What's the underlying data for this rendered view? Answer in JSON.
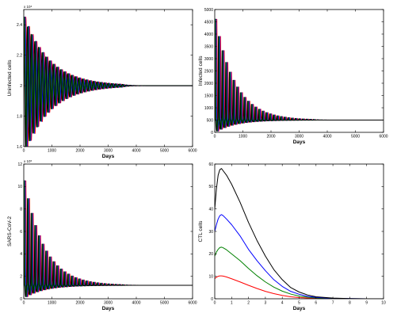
{
  "figure": {
    "background": "#ffffff"
  },
  "chart_data": [
    {
      "type": "line",
      "title": "",
      "xlabel": "Days",
      "ylabel": "Uninfected cells",
      "xlim": [
        0,
        6000
      ],
      "ylim": [
        1.6,
        2.5
      ],
      "y_exponent": "x 10⁴",
      "x_ticks": [
        0,
        1000,
        2000,
        3000,
        4000,
        5000,
        6000
      ],
      "x_tick_labels": [
        "0",
        "1000",
        "2000",
        "3000",
        "4000",
        "5000",
        "6000"
      ],
      "y_ticks": [
        1.6,
        1.8,
        2,
        2.2,
        2.4
      ],
      "y_tick_labels": [
        "1.6",
        "1.8",
        "2",
        "2.2",
        "2.4"
      ],
      "equilibrium": 2.0,
      "oscillation_amplitude": 0.45,
      "oscillation_period_days": 130,
      "oscillation_decay_days": 900,
      "oscillation_fade_days": 3500,
      "series": [
        {
          "color": "#000000",
          "phase_shift_days": 0
        },
        {
          "color": "#008000",
          "phase_shift_days": 25
        },
        {
          "color": "#0000ff",
          "phase_shift_days": 50
        },
        {
          "color": "#ff0000",
          "phase_shift_days": 75
        }
      ]
    },
    {
      "type": "line",
      "title": "",
      "xlabel": "Days",
      "ylabel": "Infected cells",
      "xlim": [
        0,
        6000
      ],
      "ylim": [
        0,
        5000
      ],
      "y_exponent": "",
      "x_ticks": [
        0,
        1000,
        2000,
        3000,
        4000,
        5000,
        6000
      ],
      "x_tick_labels": [
        "0",
        "1000",
        "2000",
        "3000",
        "4000",
        "5000",
        "6000"
      ],
      "y_ticks": [
        0,
        500,
        1000,
        1500,
        2000,
        2500,
        3000,
        3500,
        4000,
        4500,
        5000
      ],
      "y_tick_labels": [
        "0",
        "500",
        "1000",
        "1500",
        "2000",
        "2500",
        "3000",
        "3500",
        "4000",
        "4500",
        "5000"
      ],
      "equilibrium": 500,
      "spike_peak": 4600,
      "spike_decay_days": 700,
      "oscillation_period_days": 130,
      "oscillation_fade_days": 3500,
      "series": [
        {
          "color": "#000000",
          "phase_shift_days": 0
        },
        {
          "color": "#008000",
          "phase_shift_days": 25
        },
        {
          "color": "#0000ff",
          "phase_shift_days": 50
        },
        {
          "color": "#ff0000",
          "phase_shift_days": 75
        }
      ]
    },
    {
      "type": "line",
      "title": "",
      "xlabel": "Days",
      "ylabel": "SARS-CoV-2",
      "xlim": [
        0,
        6000
      ],
      "ylim": [
        0,
        12
      ],
      "y_exponent": "x 10⁵",
      "x_ticks": [
        0,
        1000,
        2000,
        3000,
        4000,
        5000,
        6000
      ],
      "x_tick_labels": [
        "0",
        "1000",
        "2000",
        "3000",
        "4000",
        "5000",
        "6000"
      ],
      "y_ticks": [
        0,
        2,
        4,
        6,
        8,
        10,
        12
      ],
      "y_tick_labels": [
        "0",
        "2",
        "4",
        "6",
        "8",
        "10",
        "12"
      ],
      "equilibrium": 1.2,
      "spike_peak": 10.5,
      "spike_decay_days": 700,
      "oscillation_period_days": 130,
      "oscillation_fade_days": 3500,
      "series": [
        {
          "color": "#000000",
          "phase_shift_days": 0
        },
        {
          "color": "#008000",
          "phase_shift_days": 25
        },
        {
          "color": "#0000ff",
          "phase_shift_days": 50
        },
        {
          "color": "#ff0000",
          "phase_shift_days": 75
        }
      ]
    },
    {
      "type": "line",
      "title": "",
      "xlabel": "Days",
      "ylabel": "CTL cells",
      "xlim": [
        0,
        10
      ],
      "ylim": [
        0,
        60
      ],
      "y_exponent": "",
      "x_ticks": [
        0,
        1,
        2,
        3,
        4,
        5,
        6,
        7,
        8,
        9,
        10
      ],
      "x_tick_labels": [
        "0",
        "1",
        "2",
        "3",
        "4",
        "5",
        "6",
        "7",
        "8",
        "9",
        "10"
      ],
      "y_ticks": [
        0,
        10,
        20,
        30,
        40,
        50,
        60
      ],
      "y_tick_labels": [
        "0",
        "10",
        "20",
        "30",
        "40",
        "50",
        "60"
      ],
      "series": [
        {
          "color": "#000000",
          "x": [
            0,
            0.1,
            0.2,
            0.3,
            0.4,
            0.5,
            0.7,
            1,
            1.5,
            2,
            2.5,
            3,
            3.5,
            4,
            4.5,
            5,
            5.5,
            6,
            7,
            8,
            9,
            10
          ],
          "y": [
            40,
            49,
            55,
            57.5,
            58,
            57,
            55,
            51,
            43,
            34,
            26,
            19,
            13,
            8.5,
            5,
            3,
            1.7,
            0.9,
            0.3,
            0.1,
            0,
            0
          ]
        },
        {
          "color": "#0000ff",
          "x": [
            0,
            0.1,
            0.2,
            0.3,
            0.4,
            0.5,
            0.7,
            1,
            1.5,
            2,
            2.5,
            3,
            3.5,
            4,
            4.5,
            5,
            5.5,
            6,
            7,
            8,
            9,
            10
          ],
          "y": [
            30,
            33,
            35.5,
            37,
            37.5,
            37,
            35.5,
            33,
            28,
            22,
            17,
            12.5,
            8.5,
            5.5,
            3.3,
            2,
            1.1,
            0.6,
            0.2,
            0.1,
            0,
            0
          ]
        },
        {
          "color": "#008000",
          "x": [
            0,
            0.1,
            0.2,
            0.3,
            0.4,
            0.5,
            0.7,
            1,
            1.5,
            2,
            2.5,
            3,
            3.5,
            4,
            4.5,
            5,
            5.5,
            6,
            7,
            8,
            9,
            10
          ],
          "y": [
            19,
            20.8,
            22,
            22.8,
            23,
            22.7,
            21.8,
            20,
            17,
            13.5,
            10.3,
            7.5,
            5.2,
            3.4,
            2.1,
            1.2,
            0.7,
            0.4,
            0.1,
            0,
            0,
            0
          ]
        },
        {
          "color": "#ff0000",
          "x": [
            0,
            0.1,
            0.2,
            0.3,
            0.4,
            0.5,
            0.7,
            1,
            1.5,
            2,
            2.5,
            3,
            3.5,
            4,
            4.5,
            5,
            5.5,
            6,
            7,
            8,
            9,
            10
          ],
          "y": [
            9,
            9.6,
            10,
            10.2,
            10.2,
            10.1,
            9.7,
            8.9,
            7.5,
            6,
            4.6,
            3.3,
            2.3,
            1.5,
            0.9,
            0.55,
            0.3,
            0.2,
            0.05,
            0,
            0,
            0
          ]
        }
      ]
    }
  ]
}
